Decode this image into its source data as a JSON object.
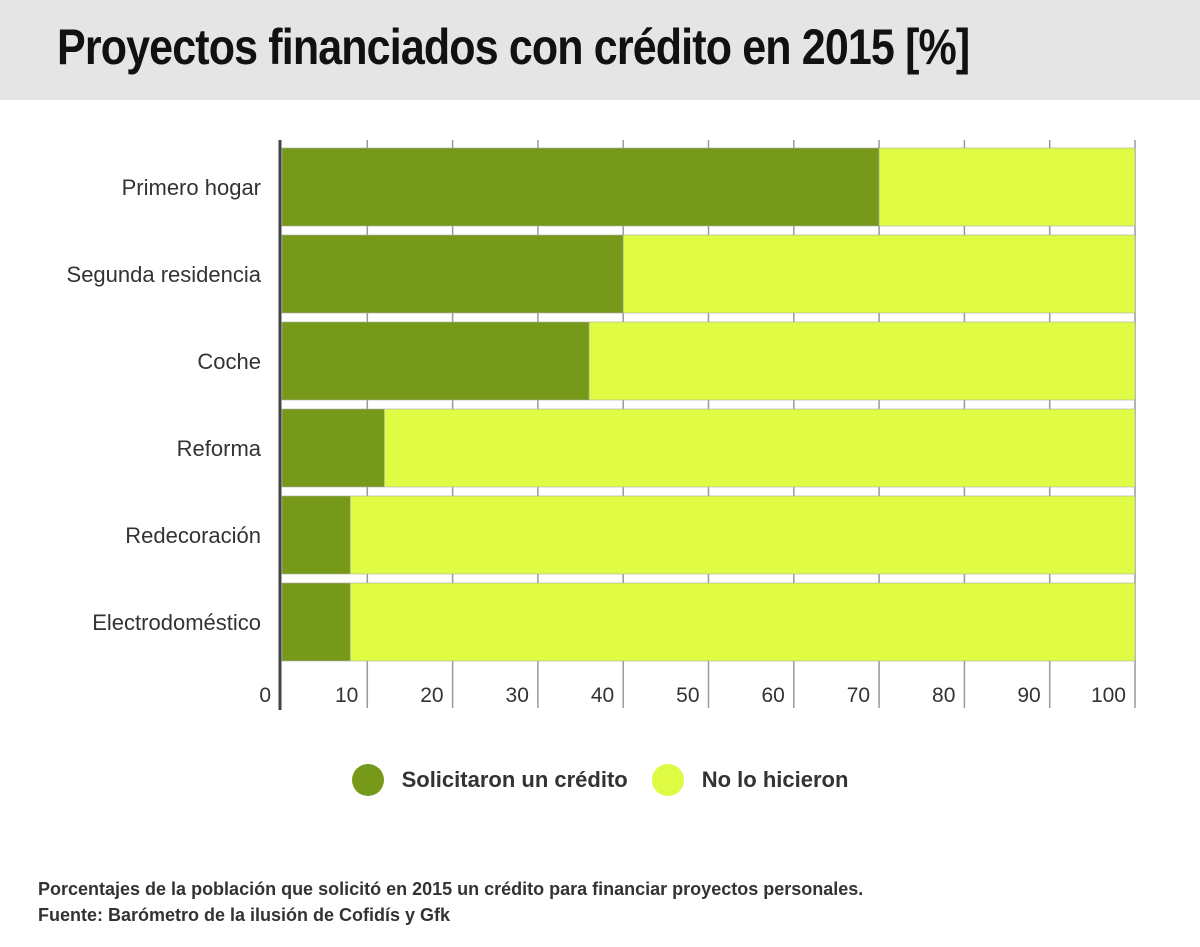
{
  "chart_data": {
    "type": "bar",
    "orientation": "horizontal",
    "stacked": true,
    "title": "Proyectos financiados con crédito en 2015 [%]",
    "categories": [
      "Primero hogar",
      "Segunda residencia",
      "Coche",
      "Reforma",
      "Redecoración",
      "Electrodoméstico"
    ],
    "series": [
      {
        "name": "Solicitaron un crédito",
        "color": "#77991a",
        "values": [
          70,
          40,
          36,
          12,
          8,
          8
        ]
      },
      {
        "name": "No lo hicieron",
        "color": "#dffb43",
        "values": [
          30,
          60,
          64,
          88,
          92,
          92
        ]
      }
    ],
    "xlim": [
      0,
      100
    ],
    "xticks": [
      "0",
      "10",
      "20",
      "30",
      "40",
      "50",
      "60",
      "70",
      "80",
      "90",
      "100"
    ],
    "grid": true,
    "legend_position": "bottom",
    "notes": [
      "Porcentajes de la población que solicitó en 2015 un crédito para financiar proyectos personales.",
      "Fuente: Barómetro de la ilusión de Cofidís y Gfk"
    ]
  }
}
